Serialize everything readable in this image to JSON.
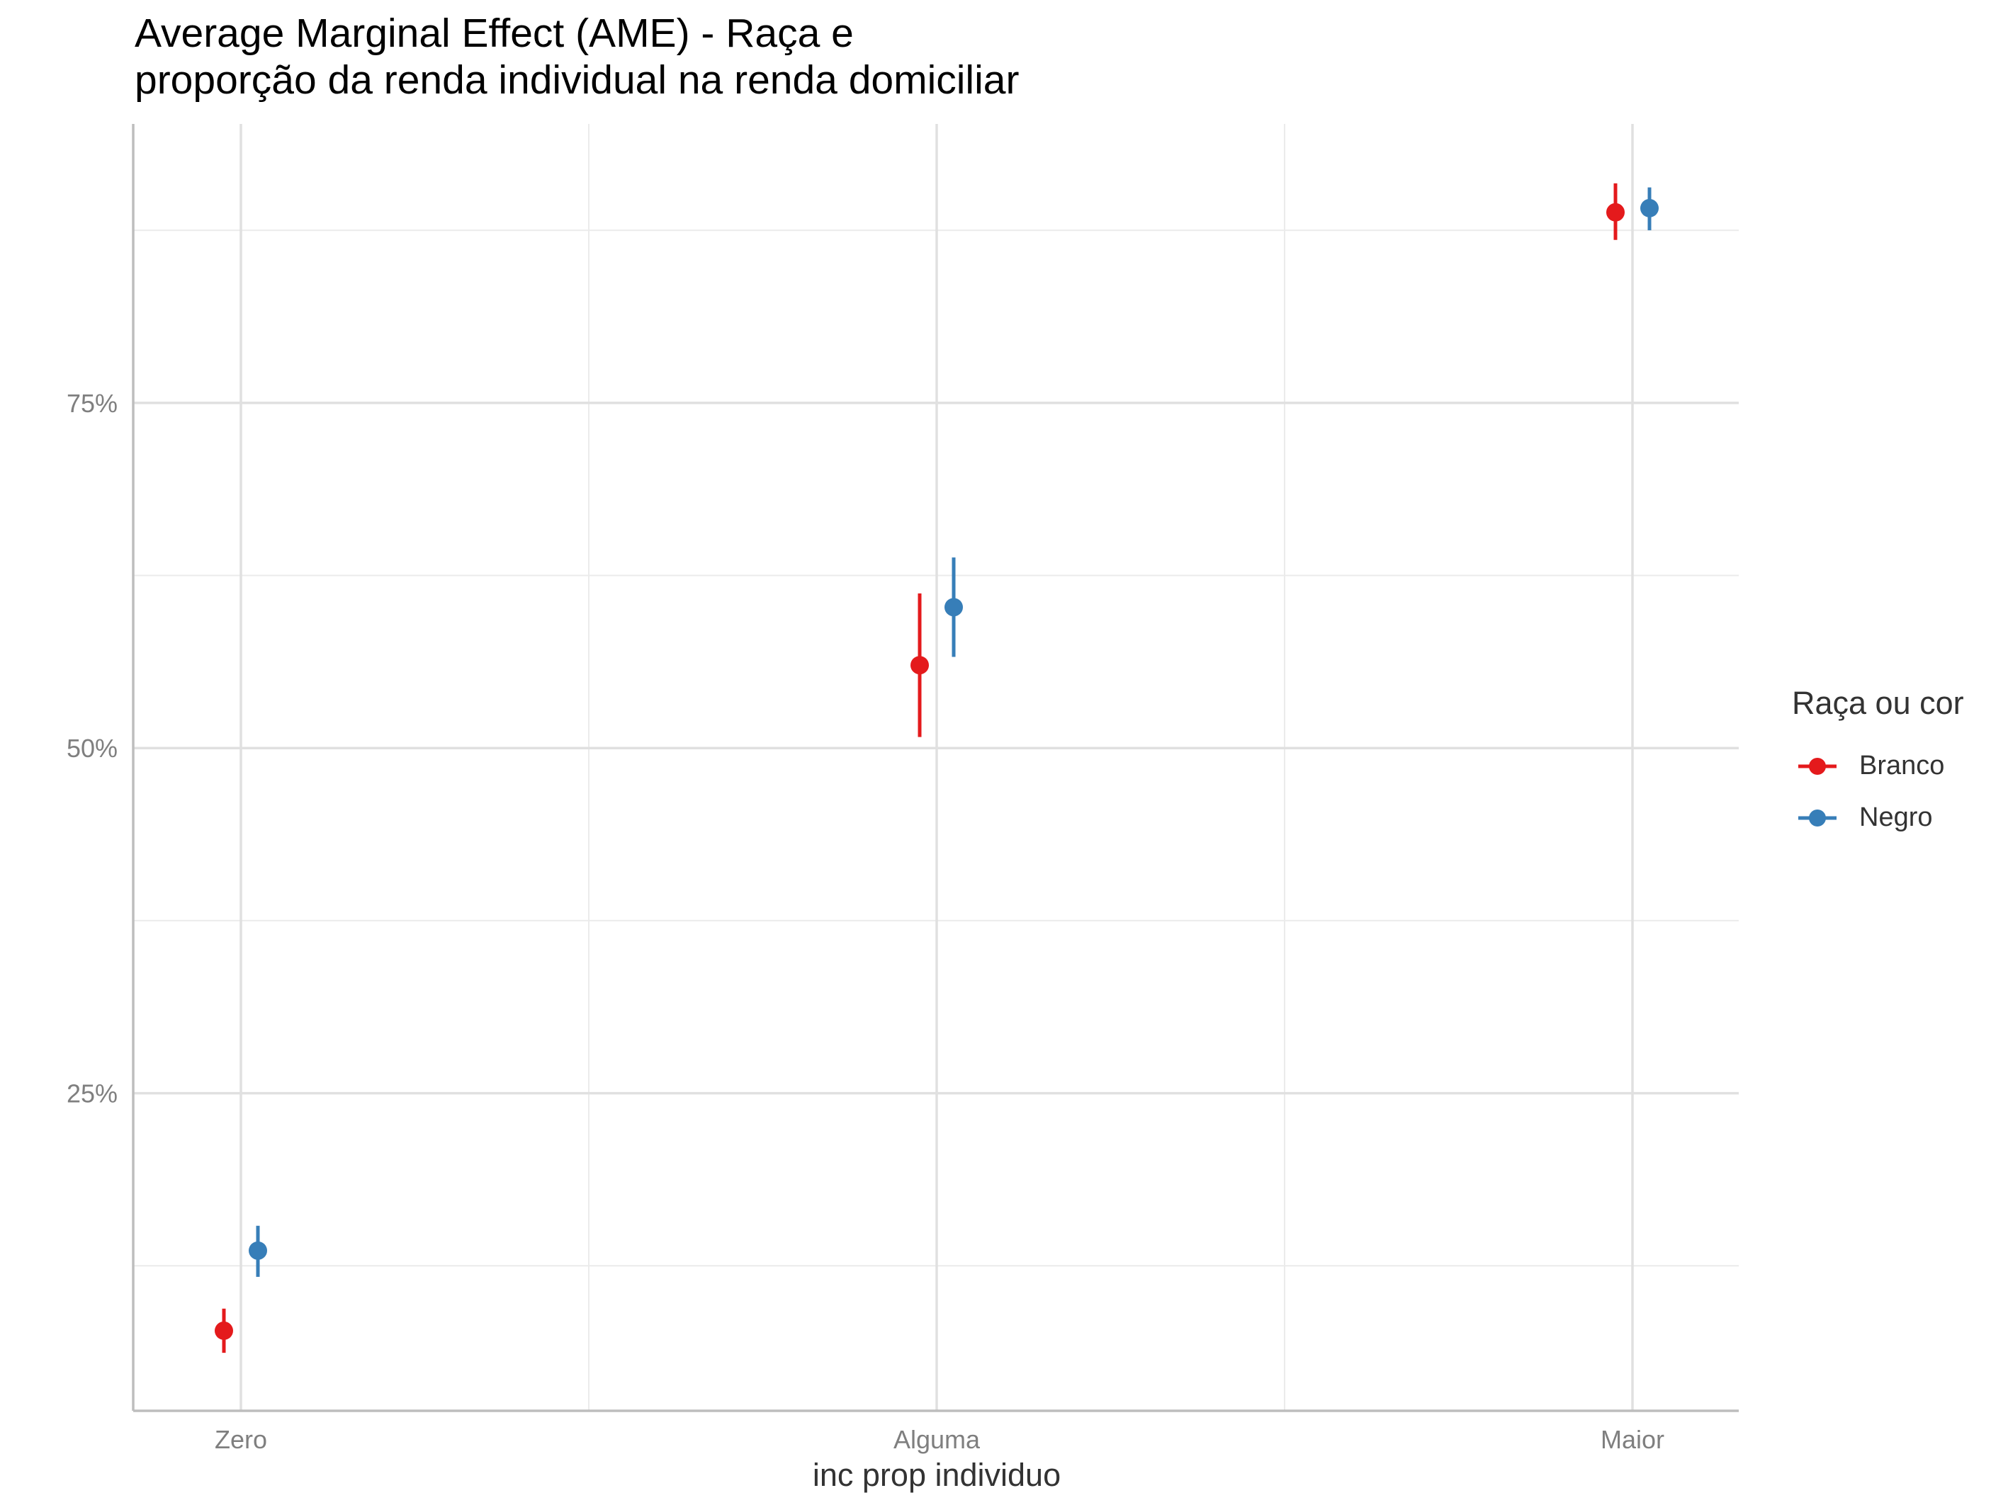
{
  "chart_data": {
    "type": "scatter",
    "title_lines": [
      "Average Marginal Effect (AME) - Raça e",
      "proporção da renda individual na renda domiciliar"
    ],
    "xlabel": "inc prop individuo",
    "ylabel": "",
    "categories": [
      "Zero",
      "Alguma",
      "Maior"
    ],
    "y_ticks": [
      0.25,
      0.5,
      0.75
    ],
    "y_tick_labels": [
      "25%",
      "50%",
      "75%"
    ],
    "ylim": [
      0.02,
      0.952
    ],
    "grid": true,
    "legend": {
      "title": "Raça ou cor",
      "position": "right"
    },
    "series": [
      {
        "name": "Branco",
        "color": "#E41A1C",
        "values": [
          0.078,
          0.56,
          0.888
        ],
        "lower": [
          0.062,
          0.508,
          0.868
        ],
        "upper": [
          0.094,
          0.612,
          0.909
        ]
      },
      {
        "name": "Negro",
        "color": "#377EB8",
        "values": [
          0.136,
          0.602,
          0.891
        ],
        "lower": [
          0.117,
          0.566,
          0.875
        ],
        "upper": [
          0.154,
          0.638,
          0.906
        ]
      }
    ]
  }
}
